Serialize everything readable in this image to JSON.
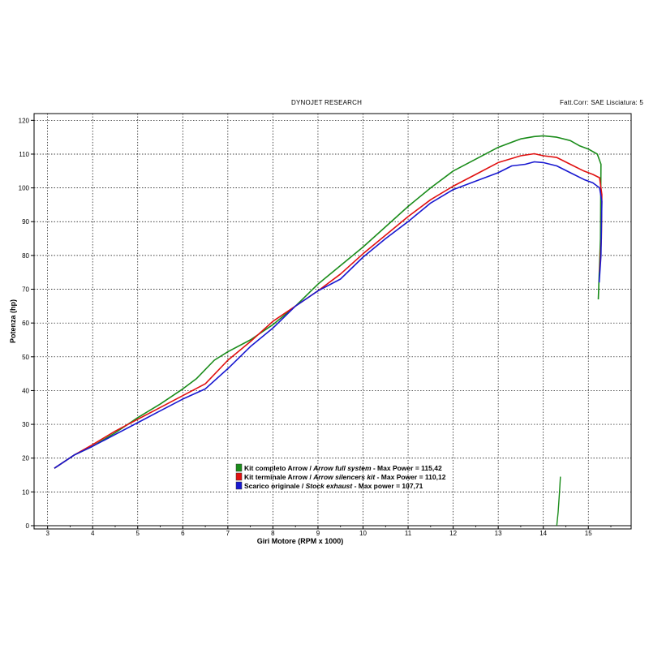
{
  "header": {
    "left": "DYNOJET RESEARCH",
    "right": "Fatt.Corr: SAE  Lisciatura: 5"
  },
  "chart_data": {
    "type": "line",
    "xlabel": "Giri Motore (RPM x 1000)",
    "ylabel": "Potenza (hp)",
    "xlim": [
      2.7,
      15.95
    ],
    "ylim": [
      0,
      122
    ],
    "xticks": [
      3,
      4,
      5,
      6,
      7,
      8,
      9,
      10,
      11,
      12,
      13,
      14,
      15
    ],
    "yticks": [
      0,
      10,
      20,
      30,
      40,
      50,
      60,
      70,
      80,
      90,
      100,
      110,
      120
    ],
    "grid": true,
    "legend_position": "bottom-center",
    "series": [
      {
        "color": "#1a8c1a",
        "legend_parts": [
          "Kit completo Arrow",
          " / ",
          "Arrow full system",
          " - Max Power = 115,42"
        ],
        "x": [
          3.15,
          3.6,
          4.0,
          4.5,
          5.0,
          5.5,
          6.0,
          6.3,
          6.7,
          7.0,
          7.5,
          8.0,
          8.5,
          9.0,
          9.5,
          10.0,
          10.5,
          11.0,
          11.5,
          12.0,
          12.5,
          13.0,
          13.5,
          13.8,
          14.0,
          14.3,
          14.6,
          14.8,
          15.0,
          15.2,
          15.28,
          15.27,
          15.22
        ],
        "y": [
          17,
          21,
          23.5,
          27.5,
          32,
          36,
          40.5,
          43.5,
          49,
          51.5,
          55,
          59.5,
          65,
          71.5,
          77,
          82.5,
          88.5,
          94.5,
          100,
          105,
          108.5,
          112,
          114.5,
          115.2,
          115.42,
          115,
          114,
          112.5,
          111.5,
          110,
          107,
          85,
          67
        ]
      },
      {
        "color": "#e01010",
        "legend_parts": [
          "Kit terminale Arrow",
          " / ",
          "Arrow silencers kit",
          " - Max Power = 110,12"
        ],
        "x": [
          3.15,
          3.6,
          4.0,
          4.5,
          5.0,
          5.5,
          6.0,
          6.5,
          7.0,
          7.5,
          8.0,
          8.5,
          9.0,
          9.5,
          10.0,
          10.5,
          11.0,
          11.5,
          12.0,
          12.5,
          13.0,
          13.5,
          13.8,
          14.0,
          14.3,
          14.6,
          14.9,
          15.1,
          15.25,
          15.3,
          15.29,
          15.25
        ],
        "y": [
          17,
          21,
          24,
          28,
          31.5,
          35,
          38.5,
          42,
          49,
          54.5,
          60.5,
          65,
          69.5,
          74.5,
          80.5,
          86,
          91.5,
          96.5,
          100.5,
          104,
          107.5,
          109.5,
          110.12,
          109.5,
          109,
          107,
          105,
          104,
          103,
          98,
          85,
          75
        ]
      },
      {
        "color": "#1818d0",
        "legend_parts": [
          "Scarico originale",
          " / ",
          "Stock exhaust",
          " - Max power = 107,71"
        ],
        "x": [
          3.15,
          3.6,
          4.0,
          4.5,
          5.0,
          5.5,
          6.0,
          6.5,
          7.0,
          7.5,
          8.0,
          8.5,
          9.0,
          9.5,
          10.0,
          10.5,
          11.0,
          11.5,
          12.0,
          12.5,
          13.0,
          13.3,
          13.6,
          13.8,
          14.0,
          14.3,
          14.6,
          14.9,
          15.1,
          15.25,
          15.3,
          15.28,
          15.24
        ],
        "y": [
          17,
          21,
          23.5,
          27,
          30.5,
          34,
          37.5,
          40.5,
          46.5,
          53,
          58.5,
          65,
          69.5,
          73,
          79.5,
          85,
          90,
          95.5,
          99.5,
          102,
          104.5,
          106.5,
          107,
          107.71,
          107.5,
          106.5,
          104.5,
          102.5,
          101.5,
          100,
          96,
          80,
          72
        ]
      }
    ],
    "annotation_series": [
      {
        "color": "#1a8c1a",
        "x": [
          14.3,
          14.33,
          14.36,
          14.38
        ],
        "y": [
          0,
          4,
          10,
          14.5
        ]
      }
    ]
  }
}
